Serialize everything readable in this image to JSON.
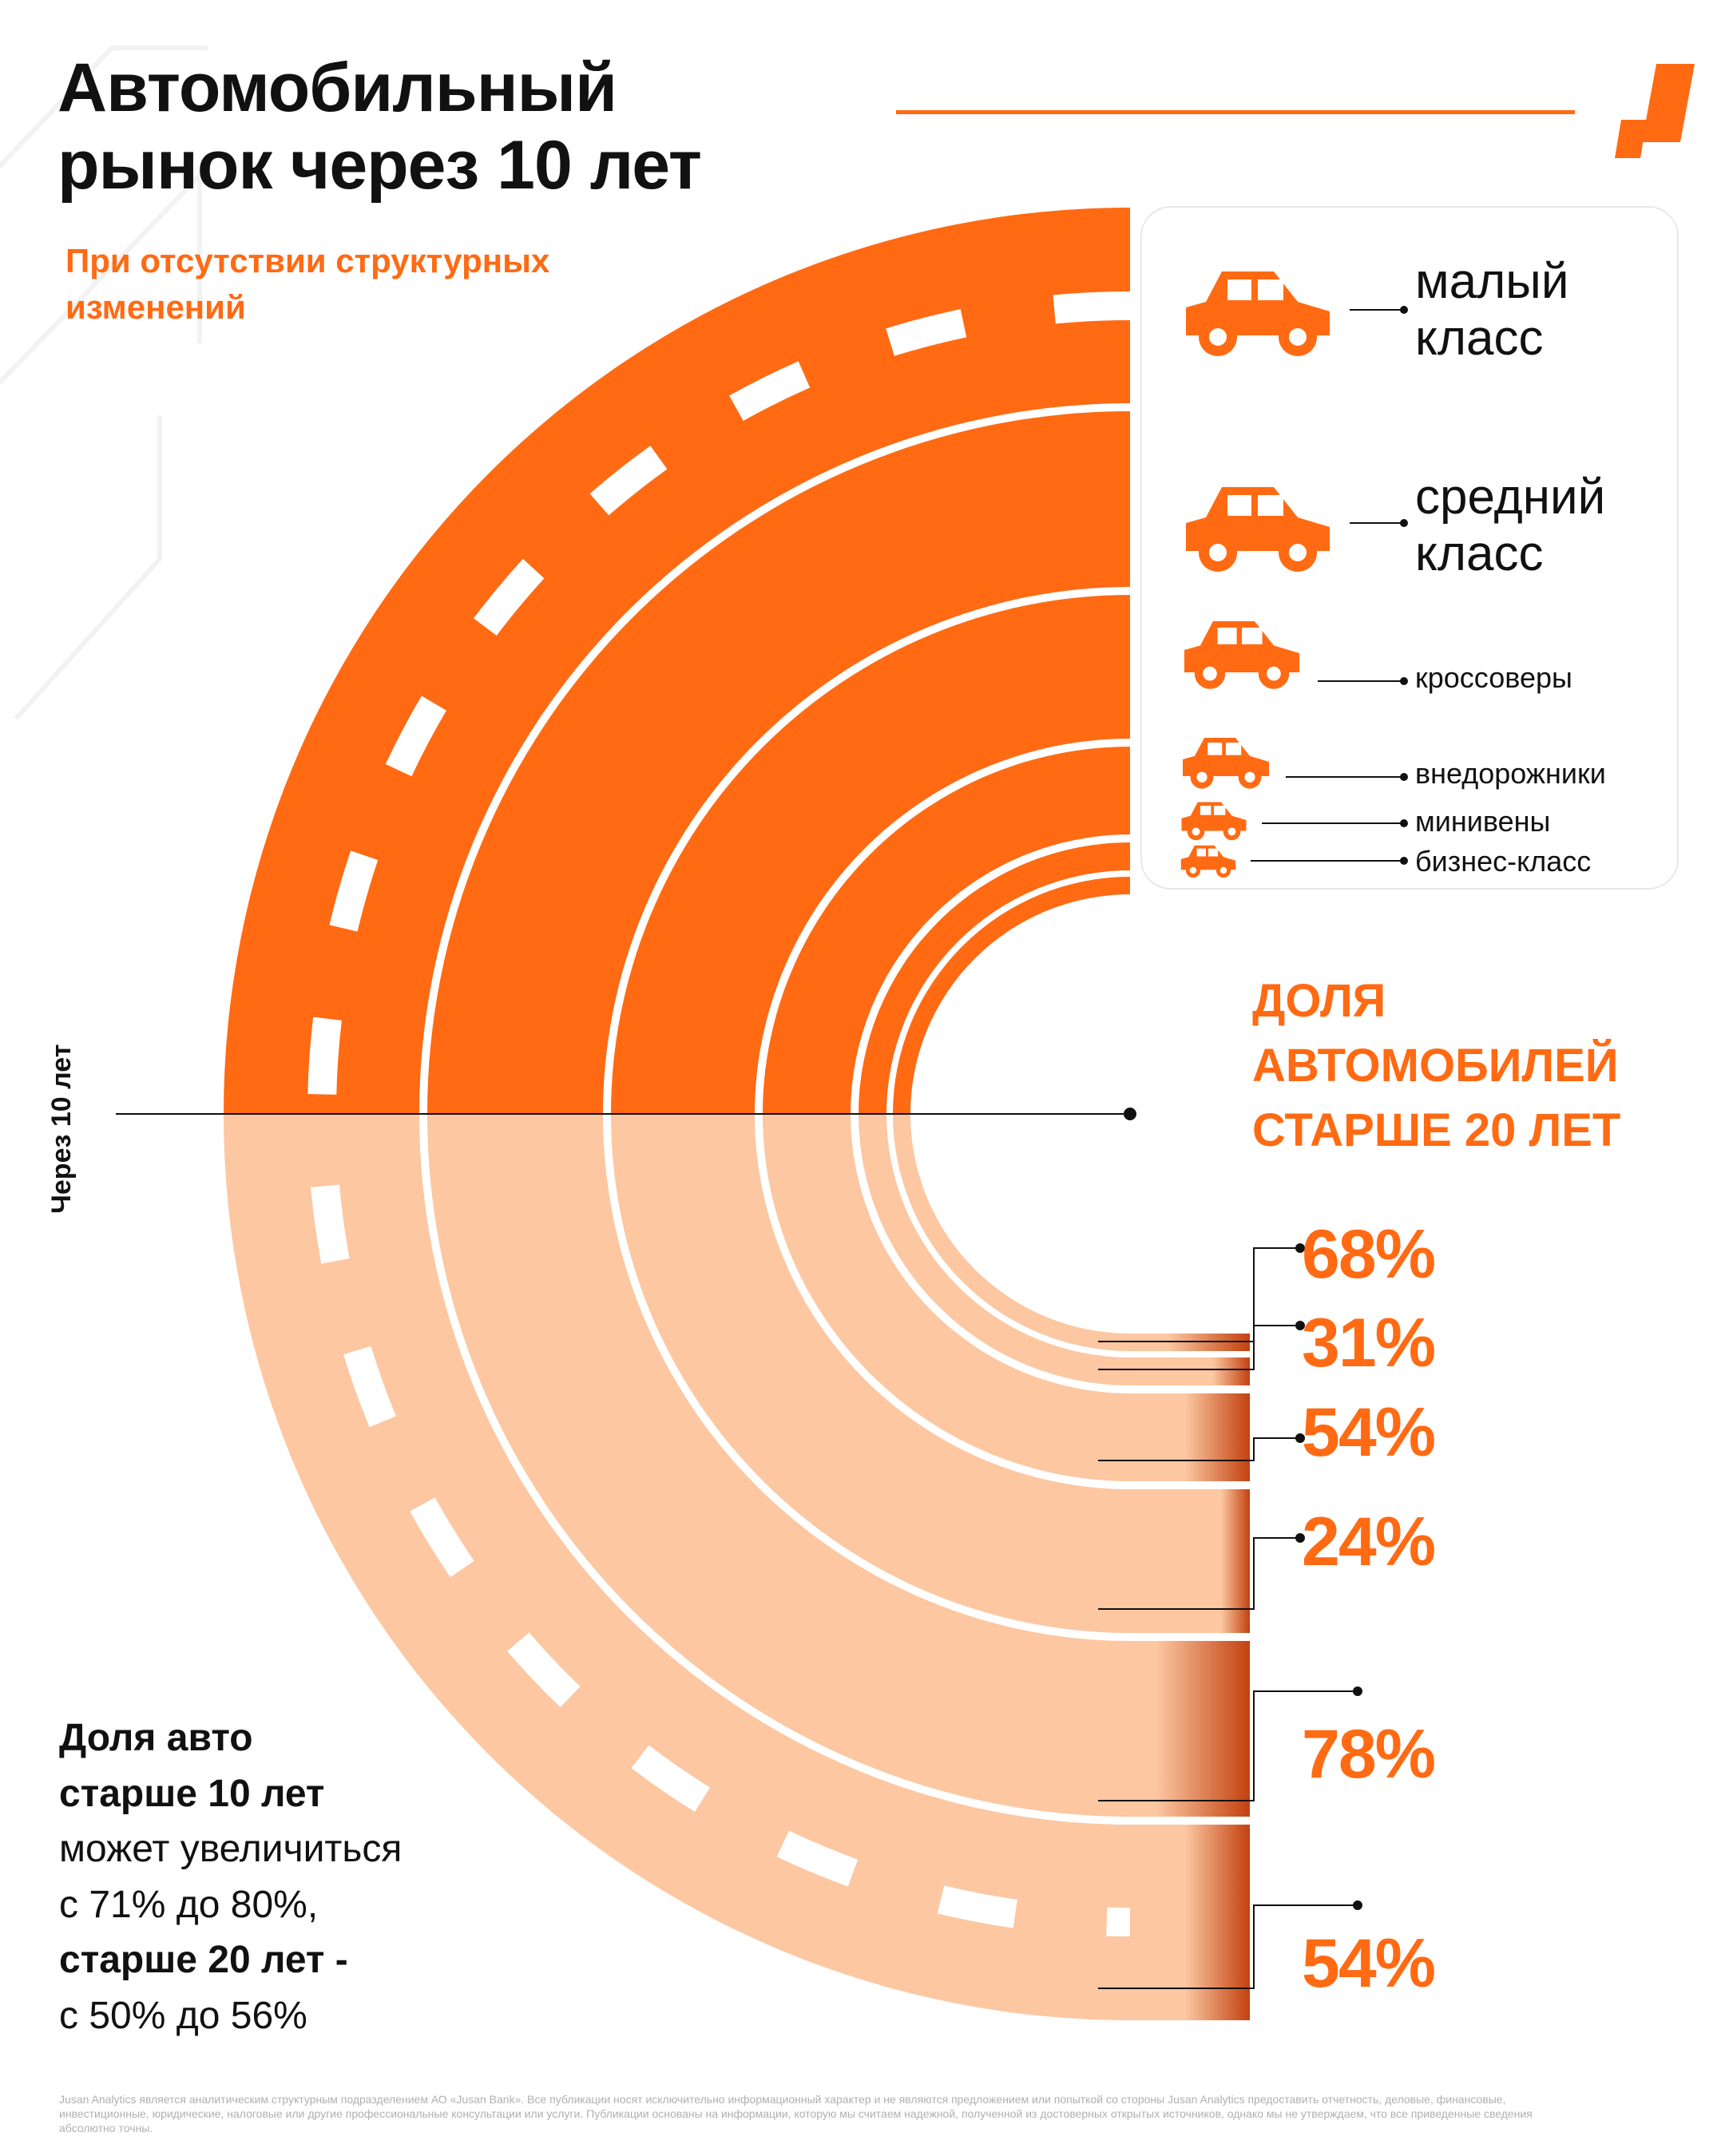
{
  "title_line1": "Автомобильный",
  "title_line2": "рынок через  10 лет",
  "subtitle": "При отсутствии структурных изменений",
  "side_label": "Через 10 лет",
  "dolya_line1": "ДОЛЯ",
  "dolya_line2": "АВТОМОБИЛЕЙ",
  "dolya_line3": "СТАРШЕ 20 ЛЕТ",
  "note": {
    "b1": "Доля авто",
    "b2": "старше 10 лет",
    "t1": "может увеличиться",
    "t2": "с 71% до 80%,",
    "b3": "старше 20 лет -",
    "t3": "с 50% до 56%"
  },
  "disclaimer": "Jusan Analytics является аналитическим структурным подразделением АО «Jusan Bank». Все публикации носят исключительно информационный характер и не являются предложением или попыткой со стороны Jusan Analytics предоставить отчетность, деловые, финансовые, инвестиционные, юридические, налоговые или другие профессиональные консультации или услуги. Публикации основаны на информации, которую мы считаем надежной, полученной из достоверных открытых источников, однако мы не утверждаем, что все приведенные сведения абсолютно точны.",
  "colors": {
    "accent": "#ff6a13",
    "light": "#fcc7a1",
    "dark": "#c2410f",
    "text": "#111111"
  },
  "chart_data": {
    "type": "radial-bar",
    "title": "Доля автомобилей старше 20 лет",
    "categories": [
      "малый класс",
      "средний класс",
      "кроссоверы",
      "внедорожники",
      "минивены",
      "бизнес-класс"
    ],
    "legend_line1": [
      "малый",
      "средний",
      "кроссоверы",
      "внедорожники",
      "минивены",
      "бизнес-класс"
    ],
    "legend_line2": [
      "класс",
      "класс",
      "",
      "",
      "",
      ""
    ],
    "legend_icons": [
      "small-car-icon",
      "hatchback-icon",
      "crossover-icon",
      "suv-icon",
      "minivan-icon",
      "business-car-icon"
    ],
    "share_labels": [
      "54%",
      "78%",
      "24%",
      "54%",
      "31%",
      "68%"
    ],
    "share_values": [
      54,
      78,
      24,
      54,
      31,
      68
    ],
    "legend_placement": "top-right"
  }
}
